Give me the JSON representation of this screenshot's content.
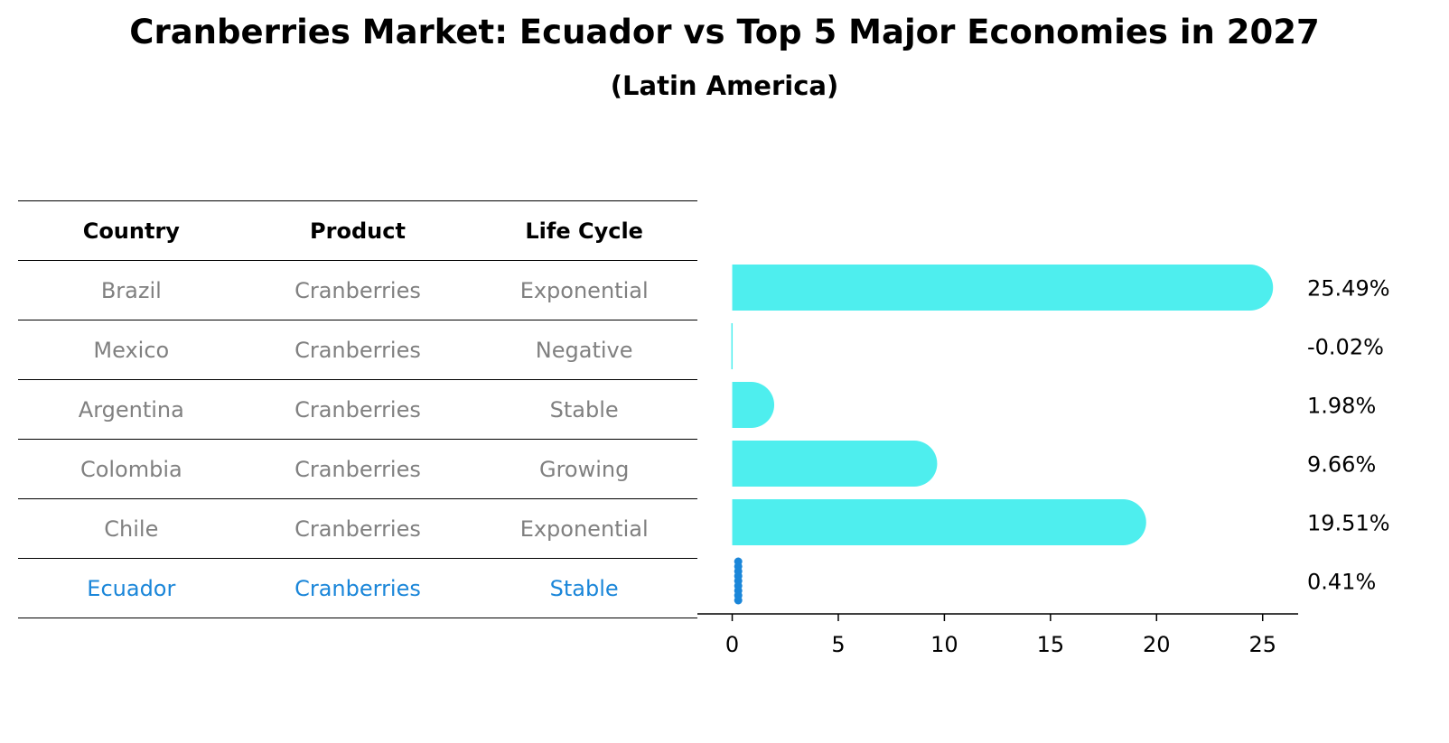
{
  "title": "Cranberries Market: Ecuador vs Top 5 Major Economies in 2027",
  "subtitle": "(Latin America)",
  "table": {
    "headers": [
      "Country",
      "Product",
      "Life Cycle"
    ],
    "rows": [
      {
        "country": "Brazil",
        "product": "Cranberries",
        "life_cycle": "Exponential"
      },
      {
        "country": "Mexico",
        "product": "Cranberries",
        "life_cycle": "Negative"
      },
      {
        "country": "Argentina",
        "product": "Cranberries",
        "life_cycle": "Stable"
      },
      {
        "country": "Colombia",
        "product": "Cranberries",
        "life_cycle": "Growing"
      },
      {
        "country": "Chile",
        "product": "Cranberries",
        "life_cycle": "Exponential"
      },
      {
        "country": "Ecuador",
        "product": "Cranberries",
        "life_cycle": "Stable"
      }
    ]
  },
  "colors": {
    "bar": "#4eeeee",
    "highlight": "#1a86d9",
    "muted_text": "#808080"
  },
  "chart_data": {
    "type": "bar",
    "orientation": "horizontal",
    "categories": [
      "Brazil",
      "Mexico",
      "Argentina",
      "Colombia",
      "Chile",
      "Ecuador"
    ],
    "values": [
      25.49,
      -0.02,
      1.98,
      9.66,
      19.51,
      0.41
    ],
    "data_labels": [
      "25.49%",
      "-0.02%",
      "1.98%",
      "9.66%",
      "19.51%",
      "0.41%"
    ],
    "highlight_category": "Ecuador",
    "xlim": [
      -1.3,
      26.8
    ],
    "xticks": [
      0,
      5,
      10,
      15,
      20,
      25
    ],
    "xtick_labels": [
      "0",
      "5",
      "10",
      "15",
      "20",
      "25"
    ],
    "title": "",
    "xlabel": "",
    "ylabel": "",
    "grid": false
  }
}
